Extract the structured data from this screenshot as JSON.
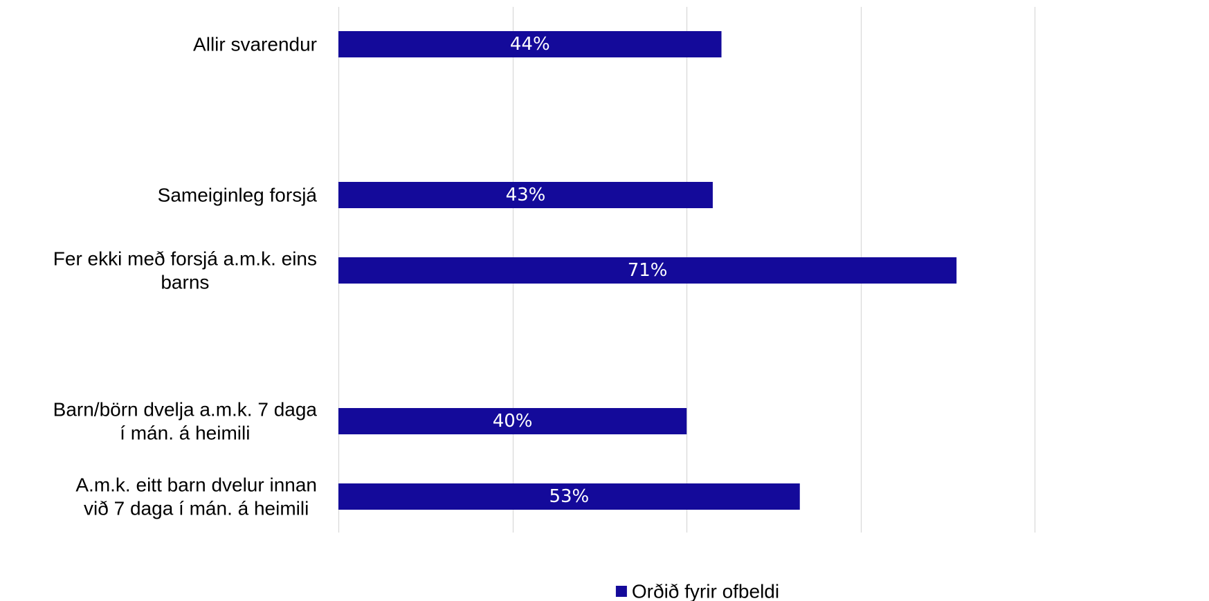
{
  "chart_data": {
    "type": "bar",
    "orientation": "horizontal",
    "categories": [
      [
        "Allir svarendur"
      ],
      [
        "Sameiginleg forsjá"
      ],
      [
        "Fer ekki með forsjá a.m.k. eins",
        "barns"
      ],
      [
        "Barn/börn dvelja a.m.k. 7 daga",
        "í mán. á heimili"
      ],
      [
        "A.m.k. eitt barn dvelur innan",
        "við 7 daga í mán. á heimili"
      ]
    ],
    "category_slots": [
      0,
      2,
      3,
      5,
      6
    ],
    "slot_count": 7,
    "series": [
      {
        "name": "Orðið fyrir ofbeldi",
        "values": [
          44,
          43,
          71,
          40,
          53
        ],
        "data_labels": [
          "44%",
          "43%",
          "71%",
          "40%",
          "53%"
        ],
        "color": "#140a9a"
      }
    ],
    "xlim": [
      0,
      100
    ],
    "grid_step": 20,
    "grid": true,
    "tick_labels_shown": false,
    "legend_position": "bottom",
    "title": "",
    "xlabel": "",
    "ylabel": ""
  }
}
